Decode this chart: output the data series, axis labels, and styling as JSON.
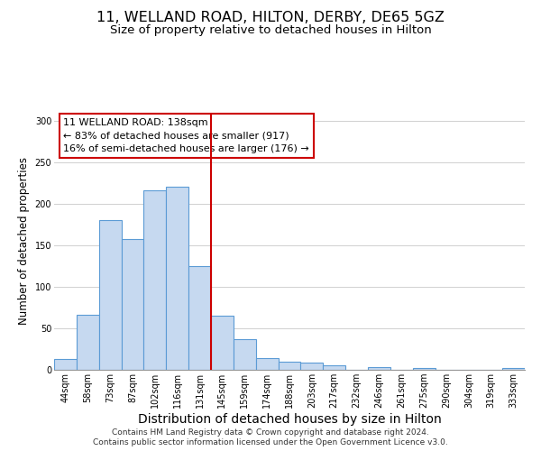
{
  "title": "11, WELLAND ROAD, HILTON, DERBY, DE65 5GZ",
  "subtitle": "Size of property relative to detached houses in Hilton",
  "xlabel": "Distribution of detached houses by size in Hilton",
  "ylabel": "Number of detached properties",
  "bar_labels": [
    "44sqm",
    "58sqm",
    "73sqm",
    "87sqm",
    "102sqm",
    "116sqm",
    "131sqm",
    "145sqm",
    "159sqm",
    "174sqm",
    "188sqm",
    "203sqm",
    "217sqm",
    "232sqm",
    "246sqm",
    "261sqm",
    "275sqm",
    "290sqm",
    "304sqm",
    "319sqm",
    "333sqm"
  ],
  "bar_values": [
    13,
    66,
    181,
    158,
    216,
    221,
    125,
    65,
    37,
    14,
    10,
    9,
    5,
    0,
    3,
    0,
    2,
    0,
    0,
    0,
    2
  ],
  "bar_color": "#c6d9f0",
  "bar_edge_color": "#5b9bd5",
  "property_line_color": "#cc0000",
  "annotation_title": "11 WELLAND ROAD: 138sqm",
  "annotation_line1": "← 83% of detached houses are smaller (917)",
  "annotation_line2": "16% of semi-detached houses are larger (176) →",
  "annotation_box_color": "#ffffff",
  "annotation_border_color": "#cc0000",
  "ylim": [
    0,
    310
  ],
  "footer1": "Contains HM Land Registry data © Crown copyright and database right 2024.",
  "footer2": "Contains public sector information licensed under the Open Government Licence v3.0.",
  "title_fontsize": 11.5,
  "subtitle_fontsize": 9.5,
  "xlabel_fontsize": 10,
  "ylabel_fontsize": 8.5,
  "tick_fontsize": 7,
  "annotation_fontsize": 8,
  "footer_fontsize": 6.5,
  "background_color": "#ffffff",
  "grid_color": "#d0d0d0"
}
